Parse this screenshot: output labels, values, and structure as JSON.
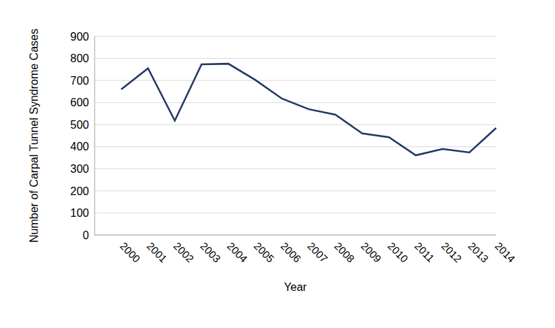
{
  "chart_data": {
    "type": "line",
    "x_label": "Year",
    "y_label": "Number of Carpal Tunnel Syndrome Cases",
    "categories": [
      "2000",
      "2001",
      "2002",
      "2003",
      "2004",
      "2005",
      "2006",
      "2007",
      "2008",
      "2009",
      "2010",
      "2011",
      "2012",
      "2013",
      "2014"
    ],
    "values": [
      660,
      755,
      518,
      773,
      776,
      703,
      618,
      570,
      545,
      460,
      443,
      361,
      390,
      374,
      485
    ],
    "color": "#203864",
    "ylim": [
      0,
      900
    ],
    "yticks": [
      0,
      100,
      200,
      300,
      400,
      500,
      600,
      700,
      800,
      900
    ],
    "grid": true
  }
}
